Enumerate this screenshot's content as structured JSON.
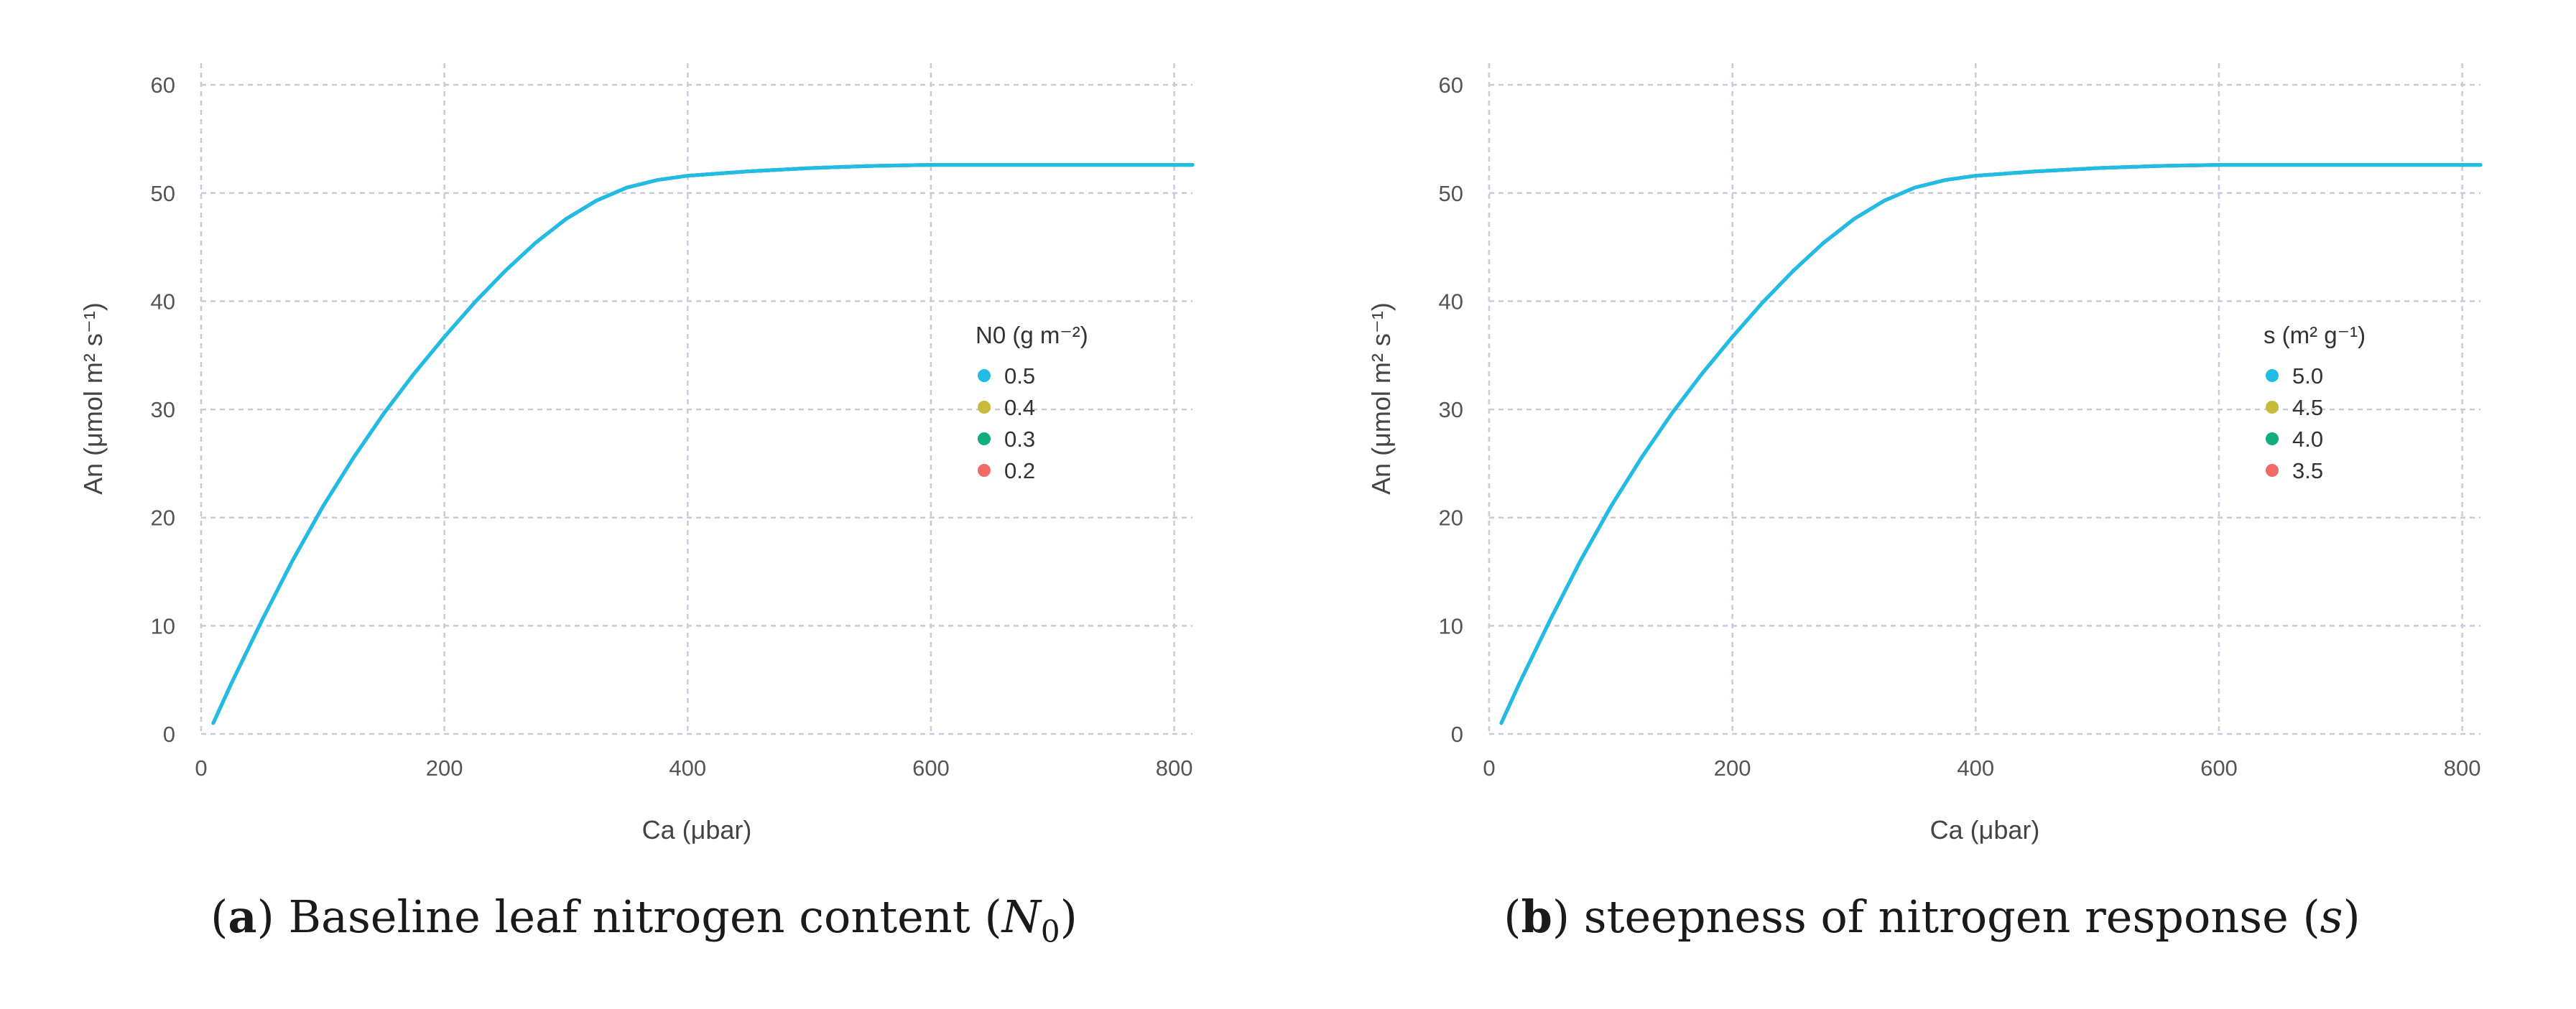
{
  "chart_data": [
    {
      "type": "line",
      "caption_letter": "a",
      "caption_text": "Baseline leaf nitrogen content",
      "caption_symbol": "N",
      "caption_sub": "0",
      "xlabel": "Ca (μbar)",
      "ylabel": "An (μmol m² s⁻¹)",
      "xlim": [
        0,
        815
      ],
      "ylim": [
        0,
        62
      ],
      "xticks": [
        0,
        200,
        400,
        600,
        800
      ],
      "yticks": [
        0,
        10,
        20,
        30,
        40,
        50,
        60
      ],
      "grid": true,
      "legend_title": "N0 (g m⁻²)",
      "legend_position": "right",
      "series": [
        {
          "name": "0.5",
          "color": "#1fbce8"
        },
        {
          "name": "0.4",
          "color": "#c9bb3a"
        },
        {
          "name": "0.3",
          "color": "#10ae7c"
        },
        {
          "name": "0.2",
          "color": "#f06a68"
        }
      ],
      "x": [
        10,
        25,
        50,
        75,
        100,
        125,
        150,
        175,
        200,
        225,
        250,
        275,
        300,
        325,
        350,
        375,
        400,
        450,
        500,
        550,
        600,
        650,
        700,
        750,
        815
      ],
      "y": [
        1,
        4.7,
        10.5,
        16.0,
        21.0,
        25.5,
        29.6,
        33.3,
        36.7,
        39.9,
        42.8,
        45.4,
        47.6,
        49.3,
        50.5,
        51.2,
        51.6,
        52.0,
        52.3,
        52.5,
        52.6,
        52.6,
        52.6,
        52.6,
        52.6
      ]
    },
    {
      "type": "line",
      "caption_letter": "b",
      "caption_text": "steepness of nitrogen response",
      "caption_symbol": "s",
      "xlabel": "Ca (μbar)",
      "ylabel": "An (μmol m² s⁻¹)",
      "xlim": [
        0,
        815
      ],
      "ylim": [
        0,
        62
      ],
      "xticks": [
        0,
        200,
        400,
        600,
        800
      ],
      "yticks": [
        0,
        10,
        20,
        30,
        40,
        50,
        60
      ],
      "grid": true,
      "legend_title": "s (m² g⁻¹)",
      "legend_position": "right",
      "series": [
        {
          "name": "5.0",
          "color": "#1fbce8"
        },
        {
          "name": "4.5",
          "color": "#c9bb3a"
        },
        {
          "name": "4.0",
          "color": "#10ae7c"
        },
        {
          "name": "3.5",
          "color": "#f06a68"
        }
      ],
      "x": [
        10,
        25,
        50,
        75,
        100,
        125,
        150,
        175,
        200,
        225,
        250,
        275,
        300,
        325,
        350,
        375,
        400,
        450,
        500,
        550,
        600,
        650,
        700,
        750,
        815
      ],
      "y": [
        1,
        4.7,
        10.5,
        16.0,
        21.0,
        25.5,
        29.6,
        33.3,
        36.7,
        39.9,
        42.8,
        45.4,
        47.6,
        49.3,
        50.5,
        51.2,
        51.6,
        52.0,
        52.3,
        52.5,
        52.6,
        52.6,
        52.6,
        52.6,
        52.6
      ]
    }
  ]
}
